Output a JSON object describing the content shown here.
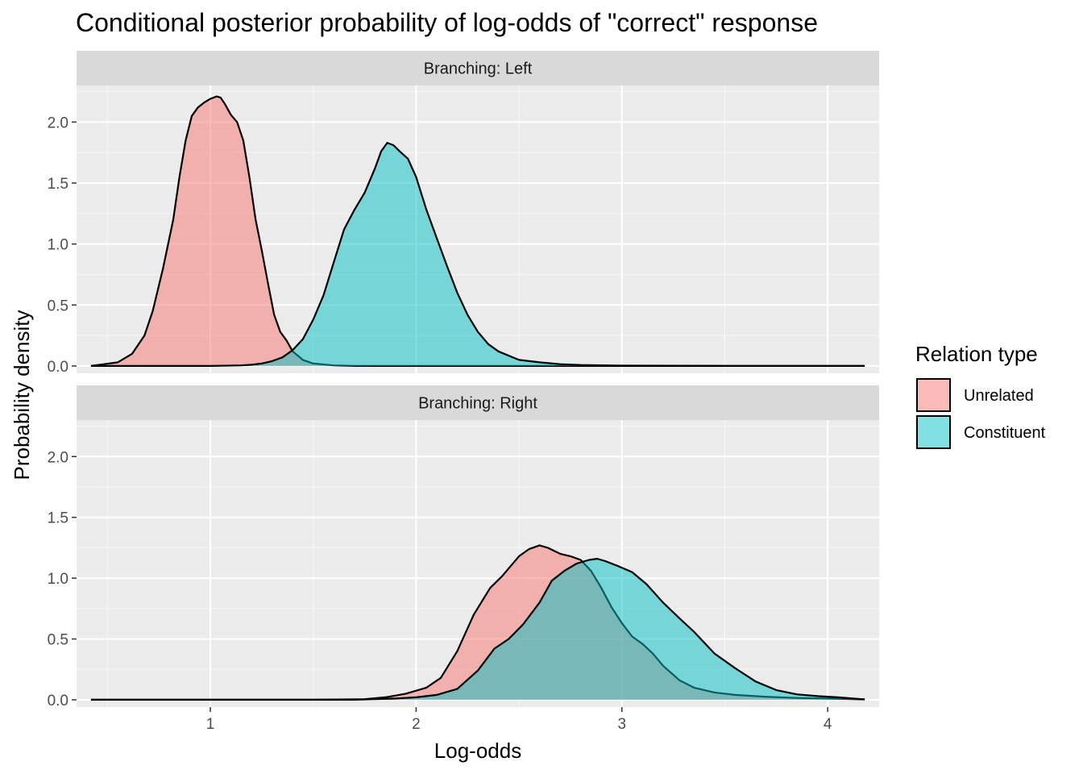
{
  "chart_data": {
    "type": "area",
    "title": "Conditional posterior probability of log-odds of \"correct\" response",
    "xlabel": "Log-odds",
    "ylabel": "Probability density",
    "xlim": [
      0.35,
      4.25
    ],
    "ylim": [
      -0.06,
      2.3
    ],
    "x_ticks": [
      1,
      2,
      3,
      4
    ],
    "x_tick_labels": [
      "1",
      "2",
      "3",
      "4"
    ],
    "y_ticks": [
      0,
      0.5,
      1,
      1.5,
      2
    ],
    "y_tick_labels": [
      "0.0",
      "0.5",
      "1.0",
      "1.5",
      "2.0"
    ],
    "grid": true,
    "legend": {
      "title": "Relation type",
      "position": "right",
      "entries": [
        {
          "label": "Unrelated",
          "color": "#F8766D"
        },
        {
          "label": "Constituent",
          "color": "#00BFC4"
        }
      ]
    },
    "facets": [
      {
        "label": "Branching: Left",
        "series": [
          {
            "name": "Unrelated",
            "color": "#F8766D",
            "x": [
              0.42,
              0.55,
              0.62,
              0.68,
              0.72,
              0.77,
              0.82,
              0.85,
              0.88,
              0.91,
              0.94,
              0.97,
              1.0,
              1.03,
              1.05,
              1.07,
              1.1,
              1.13,
              1.16,
              1.19,
              1.22,
              1.25,
              1.28,
              1.31,
              1.34,
              1.37,
              1.4,
              1.45,
              1.5,
              1.6,
              1.7,
              1.8,
              2.0,
              4.18
            ],
            "y": [
              0.0,
              0.03,
              0.1,
              0.25,
              0.45,
              0.8,
              1.2,
              1.55,
              1.85,
              2.05,
              2.12,
              2.16,
              2.19,
              2.21,
              2.2,
              2.15,
              2.06,
              2.0,
              1.85,
              1.55,
              1.2,
              0.95,
              0.68,
              0.42,
              0.28,
              0.21,
              0.12,
              0.05,
              0.02,
              0.005,
              0.001,
              0.0,
              0.0,
              0.0
            ]
          },
          {
            "name": "Constituent",
            "color": "#00BFC4",
            "x": [
              0.42,
              1.0,
              1.15,
              1.2,
              1.25,
              1.3,
              1.35,
              1.4,
              1.45,
              1.5,
              1.55,
              1.6,
              1.65,
              1.7,
              1.75,
              1.8,
              1.83,
              1.86,
              1.89,
              1.92,
              1.96,
              2.0,
              2.05,
              2.1,
              2.15,
              2.2,
              2.25,
              2.3,
              2.35,
              2.4,
              2.5,
              2.6,
              2.7,
              2.8,
              3.0,
              3.5,
              4.18
            ],
            "y": [
              0.0,
              0.0,
              0.005,
              0.01,
              0.02,
              0.04,
              0.07,
              0.13,
              0.22,
              0.38,
              0.58,
              0.85,
              1.12,
              1.28,
              1.42,
              1.62,
              1.76,
              1.83,
              1.81,
              1.76,
              1.7,
              1.55,
              1.28,
              1.05,
              0.82,
              0.6,
              0.42,
              0.28,
              0.18,
              0.12,
              0.05,
              0.03,
              0.015,
              0.008,
              0.003,
              0.001,
              0.0
            ]
          }
        ]
      },
      {
        "label": "Branching: Right",
        "series": [
          {
            "name": "Unrelated",
            "color": "#F8766D",
            "x": [
              0.42,
              1.5,
              1.75,
              1.85,
              1.95,
              2.05,
              2.12,
              2.2,
              2.28,
              2.36,
              2.42,
              2.5,
              2.55,
              2.6,
              2.64,
              2.7,
              2.75,
              2.8,
              2.85,
              2.9,
              2.95,
              3.0,
              3.05,
              3.1,
              3.15,
              3.2,
              3.28,
              3.35,
              3.45,
              3.55,
              3.7,
              3.85,
              4.0,
              4.18
            ],
            "y": [
              0.0,
              0.0,
              0.005,
              0.02,
              0.05,
              0.1,
              0.18,
              0.4,
              0.7,
              0.92,
              1.02,
              1.18,
              1.24,
              1.27,
              1.25,
              1.2,
              1.18,
              1.15,
              1.06,
              0.92,
              0.76,
              0.63,
              0.52,
              0.46,
              0.38,
              0.28,
              0.16,
              0.1,
              0.06,
              0.04,
              0.025,
              0.015,
              0.01,
              0.003
            ]
          },
          {
            "name": "Constituent",
            "color": "#00BFC4",
            "x": [
              0.42,
              1.7,
              1.9,
              2.0,
              2.1,
              2.2,
              2.3,
              2.38,
              2.45,
              2.52,
              2.6,
              2.66,
              2.72,
              2.78,
              2.84,
              2.88,
              2.92,
              2.98,
              3.05,
              3.12,
              3.2,
              3.28,
              3.35,
              3.45,
              3.55,
              3.65,
              3.75,
              3.85,
              3.95,
              4.05,
              4.18
            ],
            "y": [
              0.0,
              0.0,
              0.01,
              0.02,
              0.04,
              0.09,
              0.24,
              0.42,
              0.5,
              0.62,
              0.8,
              0.98,
              1.06,
              1.12,
              1.15,
              1.16,
              1.14,
              1.1,
              1.05,
              0.95,
              0.8,
              0.67,
              0.56,
              0.38,
              0.26,
              0.15,
              0.08,
              0.045,
              0.03,
              0.02,
              0.003
            ]
          }
        ]
      }
    ]
  }
}
